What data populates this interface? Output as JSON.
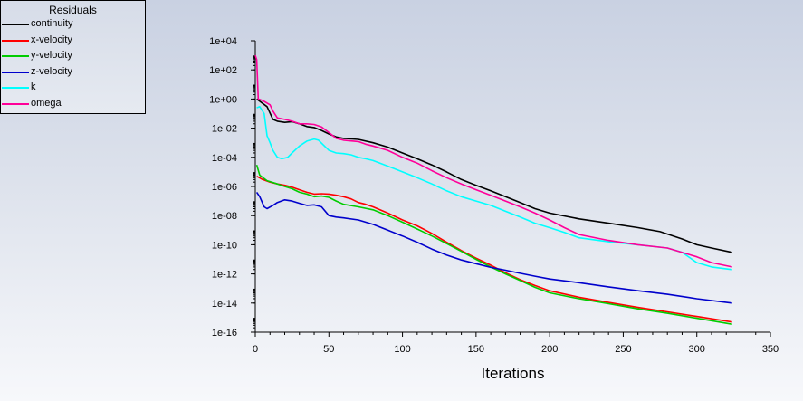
{
  "legend": {
    "title": "Residuals"
  },
  "chart_data": {
    "type": "line",
    "xlabel": "Iterations",
    "ylabel": "",
    "xlim": [
      0,
      350
    ],
    "ylim_log10": [
      -16,
      4
    ],
    "log_y": true,
    "x_ticks": [
      0,
      50,
      100,
      150,
      200,
      250,
      300,
      350
    ],
    "y_ticks": [
      "1e-16",
      "1e-14",
      "1e-12",
      "1e-10",
      "1e-08",
      "1e-06",
      "1e-04",
      "1e-02",
      "1e+00",
      "1e+02",
      "1e+04"
    ],
    "legend_position": "top-left",
    "grid": false,
    "series": [
      {
        "name": "continuity",
        "color": "#000000",
        "points": [
          [
            1,
            1
          ],
          [
            5,
            0.5
          ],
          [
            8,
            0.3
          ],
          [
            12,
            0.04
          ],
          [
            15,
            0.03
          ],
          [
            20,
            0.025
          ],
          [
            25,
            0.028
          ],
          [
            30,
            0.02
          ],
          [
            35,
            0.013
          ],
          [
            40,
            0.011
          ],
          [
            45,
            0.007
          ],
          [
            50,
            0.004
          ],
          [
            55,
            0.0025
          ],
          [
            60,
            0.002
          ],
          [
            70,
            0.0017
          ],
          [
            80,
            0.001
          ],
          [
            90,
            0.0005
          ],
          [
            100,
            0.0002
          ],
          [
            110,
            8e-05
          ],
          [
            120,
            3e-05
          ],
          [
            130,
            1e-05
          ],
          [
            140,
            3e-06
          ],
          [
            150,
            1.2e-06
          ],
          [
            160,
            5e-07
          ],
          [
            170,
            2e-07
          ],
          [
            180,
            8e-08
          ],
          [
            190,
            3e-08
          ],
          [
            200,
            1.5e-08
          ],
          [
            220,
            6e-09
          ],
          [
            240,
            3e-09
          ],
          [
            260,
            1.5e-09
          ],
          [
            275,
            8e-10
          ],
          [
            290,
            2.5e-10
          ],
          [
            300,
            1e-10
          ],
          [
            310,
            6e-11
          ],
          [
            324,
            3e-11
          ]
        ]
      },
      {
        "name": "x-velocity",
        "color": "#ff0000",
        "points": [
          [
            1,
            5e-06
          ],
          [
            5,
            3e-06
          ],
          [
            10,
            2e-06
          ],
          [
            15,
            1.5e-06
          ],
          [
            20,
            1.2e-06
          ],
          [
            25,
            9e-07
          ],
          [
            30,
            6e-07
          ],
          [
            35,
            4e-07
          ],
          [
            40,
            3e-07
          ],
          [
            45,
            3.2e-07
          ],
          [
            50,
            3e-07
          ],
          [
            55,
            2.5e-07
          ],
          [
            60,
            2e-07
          ],
          [
            65,
            1.4e-07
          ],
          [
            70,
            8e-08
          ],
          [
            75,
            6e-08
          ],
          [
            80,
            4e-08
          ],
          [
            90,
            1.5e-08
          ],
          [
            100,
            5e-09
          ],
          [
            110,
            2e-09
          ],
          [
            120,
            6e-10
          ],
          [
            130,
            1.5e-10
          ],
          [
            140,
            4e-11
          ],
          [
            150,
            1.2e-11
          ],
          [
            160,
            4e-12
          ],
          [
            170,
            1.2e-12
          ],
          [
            180,
            4e-13
          ],
          [
            190,
            1.6e-13
          ],
          [
            200,
            7e-14
          ],
          [
            220,
            2.5e-14
          ],
          [
            240,
            1.1e-14
          ],
          [
            260,
            5e-15
          ],
          [
            280,
            2.5e-15
          ],
          [
            300,
            1.2e-15
          ],
          [
            324,
            5e-16
          ]
        ]
      },
      {
        "name": "y-velocity",
        "color": "#00cc00",
        "points": [
          [
            1,
            3e-05
          ],
          [
            3,
            6e-06
          ],
          [
            8,
            2.5e-06
          ],
          [
            15,
            1.5e-06
          ],
          [
            20,
            1e-06
          ],
          [
            25,
            7e-07
          ],
          [
            30,
            4e-07
          ],
          [
            35,
            3e-07
          ],
          [
            40,
            2e-07
          ],
          [
            45,
            2.2e-07
          ],
          [
            50,
            1.8e-07
          ],
          [
            55,
            1e-07
          ],
          [
            60,
            6e-08
          ],
          [
            70,
            4e-08
          ],
          [
            80,
            2.5e-08
          ],
          [
            90,
            1e-08
          ],
          [
            100,
            3.5e-09
          ],
          [
            110,
            1.2e-09
          ],
          [
            120,
            4e-10
          ],
          [
            130,
            1.2e-10
          ],
          [
            140,
            3.5e-11
          ],
          [
            150,
            1e-11
          ],
          [
            160,
            3e-12
          ],
          [
            170,
            1e-12
          ],
          [
            180,
            3.5e-13
          ],
          [
            190,
            1.2e-13
          ],
          [
            200,
            5e-14
          ],
          [
            220,
            2e-14
          ],
          [
            240,
            9e-15
          ],
          [
            260,
            4e-15
          ],
          [
            280,
            2e-15
          ],
          [
            300,
            9e-16
          ],
          [
            324,
            3.5e-16
          ]
        ]
      },
      {
        "name": "z-velocity",
        "color": "#0000cc",
        "points": [
          [
            1,
            4e-07
          ],
          [
            3,
            2e-07
          ],
          [
            6,
            4e-08
          ],
          [
            8,
            3e-08
          ],
          [
            12,
            5e-08
          ],
          [
            15,
            8e-08
          ],
          [
            20,
            1.2e-07
          ],
          [
            25,
            1e-07
          ],
          [
            30,
            7e-08
          ],
          [
            35,
            5e-08
          ],
          [
            40,
            5.5e-08
          ],
          [
            45,
            4e-08
          ],
          [
            50,
            1e-08
          ],
          [
            55,
            8e-09
          ],
          [
            60,
            7e-09
          ],
          [
            70,
            5e-09
          ],
          [
            80,
            2.5e-09
          ],
          [
            90,
            1e-09
          ],
          [
            100,
            4e-10
          ],
          [
            110,
            1.5e-10
          ],
          [
            120,
            5e-11
          ],
          [
            130,
            2e-11
          ],
          [
            140,
            9e-12
          ],
          [
            150,
            5e-12
          ],
          [
            160,
            2.8e-12
          ],
          [
            170,
            1.8e-12
          ],
          [
            180,
            1.1e-12
          ],
          [
            190,
            7e-13
          ],
          [
            200,
            4.5e-13
          ],
          [
            220,
            2.5e-13
          ],
          [
            240,
            1.3e-13
          ],
          [
            260,
            7e-14
          ],
          [
            280,
            4e-14
          ],
          [
            300,
            2e-14
          ],
          [
            324,
            1e-14
          ]
        ]
      },
      {
        "name": "k",
        "color": "#00ffff",
        "points": [
          [
            1,
            0.25
          ],
          [
            3,
            0.3
          ],
          [
            6,
            0.1
          ],
          [
            8,
            0.003
          ],
          [
            10,
            0.001
          ],
          [
            12,
            0.0003
          ],
          [
            15,
            0.0001
          ],
          [
            18,
            8e-05
          ],
          [
            22,
            0.0001
          ],
          [
            25,
            0.0002
          ],
          [
            30,
            0.0006
          ],
          [
            35,
            0.0013
          ],
          [
            40,
            0.0018
          ],
          [
            43,
            0.0015
          ],
          [
            47,
            0.0006
          ],
          [
            50,
            0.0003
          ],
          [
            55,
            0.0002
          ],
          [
            60,
            0.00018
          ],
          [
            65,
            0.00015
          ],
          [
            70,
            0.0001
          ],
          [
            75,
            8e-05
          ],
          [
            80,
            6e-05
          ],
          [
            90,
            2.5e-05
          ],
          [
            100,
            1e-05
          ],
          [
            110,
            4e-06
          ],
          [
            120,
            1.5e-06
          ],
          [
            130,
            5e-07
          ],
          [
            140,
            2e-07
          ],
          [
            150,
            1e-07
          ],
          [
            160,
            5e-08
          ],
          [
            170,
            2e-08
          ],
          [
            180,
            8e-09
          ],
          [
            190,
            3e-09
          ],
          [
            200,
            1.5e-09
          ],
          [
            210,
            7e-10
          ],
          [
            220,
            3e-10
          ],
          [
            240,
            1.6e-10
          ],
          [
            260,
            1e-10
          ],
          [
            280,
            6e-11
          ],
          [
            290,
            3e-11
          ],
          [
            300,
            6e-12
          ],
          [
            310,
            3e-12
          ],
          [
            324,
            2e-12
          ]
        ]
      },
      {
        "name": "omega",
        "color": "#ff0099",
        "points": [
          [
            0,
            1000
          ],
          [
            1,
            500
          ],
          [
            2,
            1
          ],
          [
            5,
            0.8
          ],
          [
            10,
            0.4
          ],
          [
            12,
            0.15
          ],
          [
            15,
            0.05
          ],
          [
            20,
            0.04
          ],
          [
            25,
            0.03
          ],
          [
            30,
            0.02
          ],
          [
            35,
            0.02
          ],
          [
            40,
            0.018
          ],
          [
            45,
            0.012
          ],
          [
            50,
            0.005
          ],
          [
            55,
            0.002
          ],
          [
            60,
            0.0015
          ],
          [
            70,
            0.0012
          ],
          [
            75,
            0.0008
          ],
          [
            80,
            0.0006
          ],
          [
            90,
            0.0003
          ],
          [
            100,
            0.0001
          ],
          [
            110,
            4e-05
          ],
          [
            120,
            1.2e-05
          ],
          [
            130,
            4e-06
          ],
          [
            140,
            1.5e-06
          ],
          [
            150,
            6e-07
          ],
          [
            160,
            2.5e-07
          ],
          [
            170,
            1e-07
          ],
          [
            180,
            4e-08
          ],
          [
            190,
            1.5e-08
          ],
          [
            200,
            5e-09
          ],
          [
            210,
            1.5e-09
          ],
          [
            220,
            5e-10
          ],
          [
            240,
            2e-10
          ],
          [
            260,
            1e-10
          ],
          [
            280,
            6e-11
          ],
          [
            300,
            1.5e-11
          ],
          [
            310,
            6e-12
          ],
          [
            324,
            3e-12
          ]
        ]
      }
    ]
  }
}
